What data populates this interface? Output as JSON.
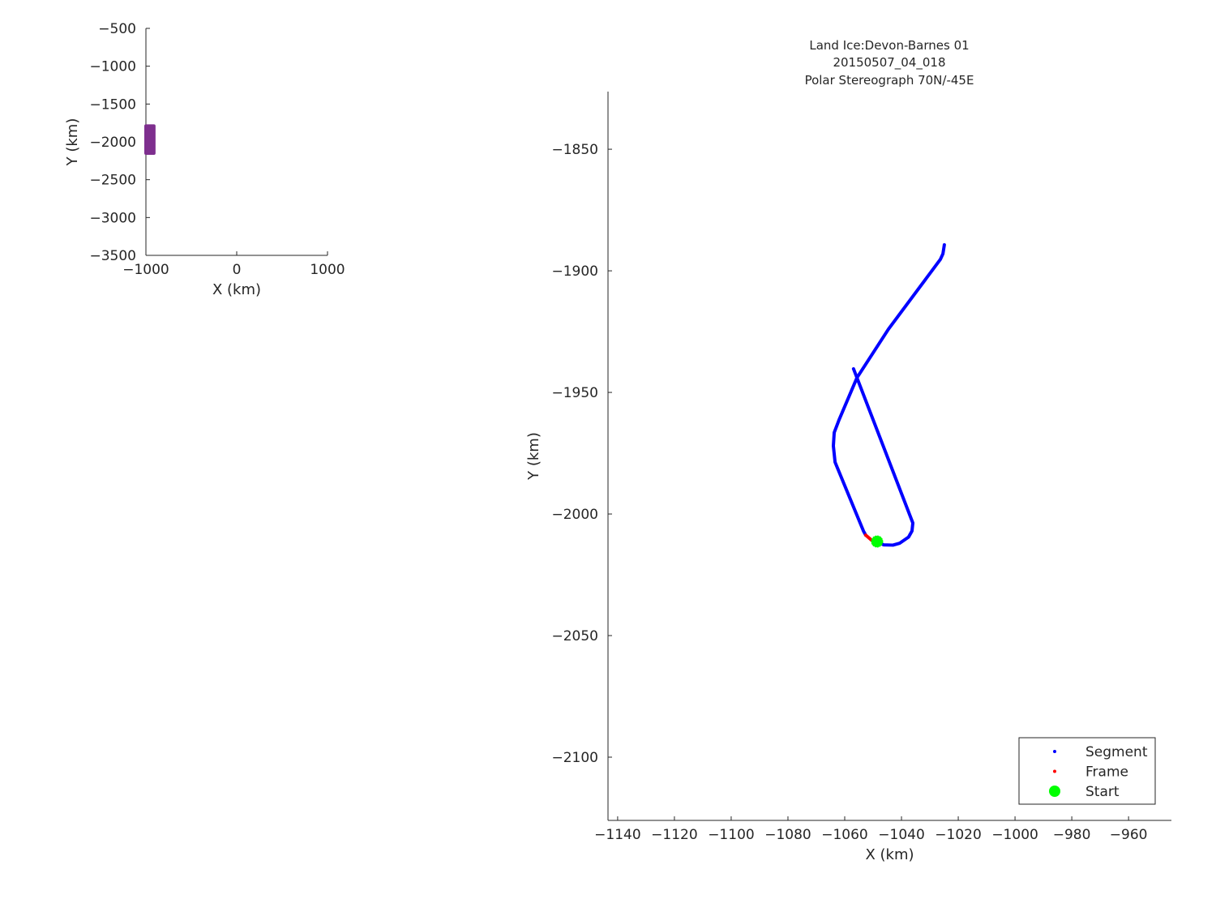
{
  "chart_data": [
    {
      "type": "line",
      "title": "",
      "xlabel": "X (km)",
      "ylabel": "Y (km)",
      "xlim": [
        -1000,
        1000
      ],
      "ylim": [
        -3500,
        -500
      ],
      "xticks": [
        -1000,
        0,
        1000
      ],
      "yticks": [
        -3500,
        -3000,
        -2500,
        -2000,
        -1500,
        -1000,
        -500
      ],
      "grid": false,
      "series": [
        {
          "color": "#7e2f8e",
          "x": [
            -1000,
            -912,
            -912,
            -1000
          ],
          "y": [
            -1790,
            -1790,
            -2150,
            -2150
          ]
        }
      ]
    },
    {
      "type": "line",
      "title": [
        "Land Ice:Devon-Barnes 01",
        "20150507_04_018",
        "Polar Stereograph 70N/-45E"
      ],
      "xlabel": "X (km)",
      "ylabel": "Y (km)",
      "xlim": [
        -1143.4,
        -944.9
      ],
      "ylim": [
        -2126,
        -1826.3
      ],
      "xticks": [
        -1140,
        -1120,
        -1100,
        -1080,
        -1060,
        -1040,
        -1020,
        -1000,
        -980,
        -960
      ],
      "yticks": [
        -2100,
        -2050,
        -2000,
        -1950,
        -1900,
        -1850
      ],
      "grid": false,
      "legend_position": "bottom-right",
      "series": [
        {
          "name": "Segment",
          "color": "#0000ff",
          "x": [
            -1024.9,
            -1025.4,
            -1026.3,
            -1044.6,
            -1055.7,
            -1062.0,
            -1063.7,
            -1064.0,
            -1063.4,
            -1053.4,
            -1052.6
          ],
          "y": [
            -1889.3,
            -1893.0,
            -1895.3,
            -1924.0,
            -1944.0,
            -1961.3,
            -1966.5,
            -1972.0,
            -1978.7,
            -2007.0,
            -2008.7
          ]
        },
        {
          "name": "Segment",
          "color": "#0000ff",
          "x": [
            -1048.6,
            -1046.3,
            -1043.0,
            -1040.6,
            -1037.5,
            -1036.3,
            -1036.0,
            -1056.9
          ],
          "y": [
            -2011.3,
            -2012.7,
            -2012.8,
            -2012.0,
            -2009.5,
            -2007.0,
            -2003.7,
            -1940.3
          ]
        },
        {
          "name": "Frame",
          "color": "#ff0000",
          "x": [
            -1052.6,
            -1050.0,
            -1048.6
          ],
          "y": [
            -2008.7,
            -2011.3,
            -2011.3
          ]
        },
        {
          "name": "Start",
          "color": "#00ff00",
          "marker": "star",
          "x": [
            -1048.6
          ],
          "y": [
            -2011.3
          ]
        }
      ],
      "legend": [
        "Segment",
        "Frame",
        "Start"
      ]
    }
  ]
}
